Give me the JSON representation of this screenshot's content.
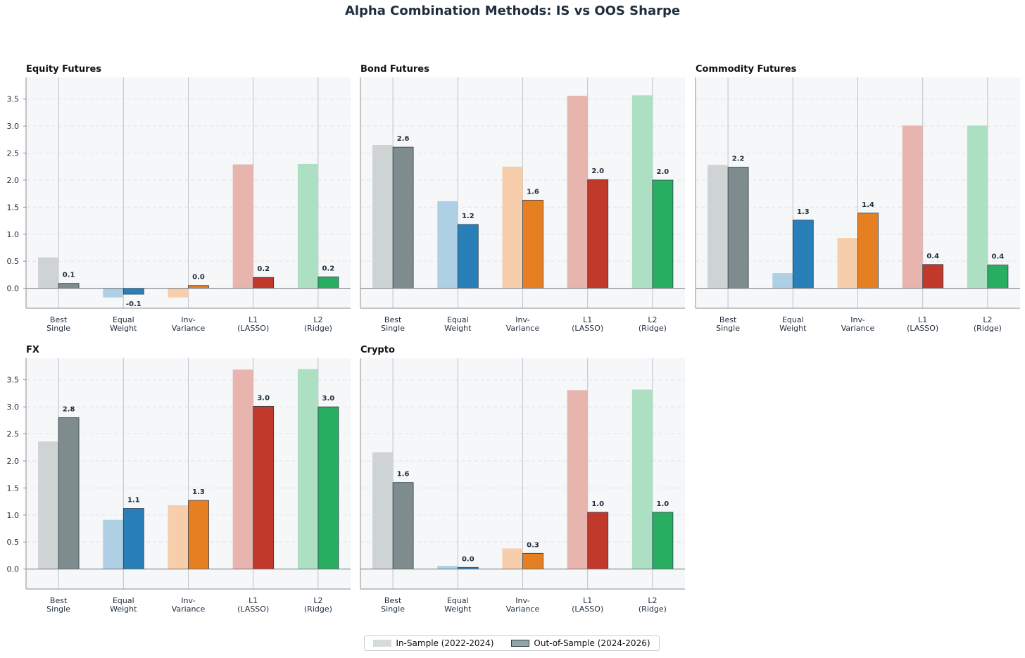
{
  "figure_title": "Alpha Combination Methods: IS vs OOS Sharpe",
  "legend": {
    "in_sample_label": "In-Sample (2022-2024)",
    "out_of_sample_label": "Out-of-Sample (2024-2026)",
    "placement": "bottom-center"
  },
  "colors": {
    "method_colors": [
      "#7f8c8d",
      "#2980b9",
      "#e67e22",
      "#c0392b",
      "#27ae60"
    ],
    "panel_background": "#f5f7f9",
    "label_color": "#1f2d3d"
  },
  "chart_data": [
    {
      "type": "bar",
      "title": "Equity Futures",
      "categories": [
        "Best\nSingle",
        "Equal\nWeight",
        "Inv-\nVariance",
        "L1\n(LASSO)",
        "L2\n(Ridge)"
      ],
      "series": [
        {
          "name": "In-Sample (2022-2024)",
          "values": [
            0.57,
            -0.17,
            -0.17,
            2.29,
            2.3
          ]
        },
        {
          "name": "Out-of-Sample (2024-2026)",
          "values": [
            0.09,
            -0.11,
            0.05,
            0.2,
            0.21
          ]
        }
      ],
      "data_labels": [
        "0.1",
        "-0.1",
        "0.0",
        "0.2",
        "0.2"
      ],
      "ylim": [
        -0.37,
        3.9
      ],
      "yticks": [
        "0.0",
        "0.5",
        "1.0",
        "1.5",
        "2.0",
        "2.5",
        "3.0",
        "3.5"
      ],
      "grid": true
    },
    {
      "type": "bar",
      "title": "Bond Futures",
      "categories": [
        "Best\nSingle",
        "Equal\nWeight",
        "Inv-\nVariance",
        "L1\n(LASSO)",
        "L2\n(Ridge)"
      ],
      "series": [
        {
          "name": "In-Sample (2022-2024)",
          "values": [
            2.65,
            1.61,
            2.25,
            3.56,
            3.57
          ]
        },
        {
          "name": "Out-of-Sample (2024-2026)",
          "values": [
            2.61,
            1.18,
            1.63,
            2.01,
            2.0
          ]
        }
      ],
      "data_labels": [
        "2.6",
        "1.2",
        "1.6",
        "2.0",
        "2.0"
      ],
      "ylim": [
        -0.37,
        3.9
      ],
      "yticks": [],
      "grid": true
    },
    {
      "type": "bar",
      "title": "Commodity Futures",
      "categories": [
        "Best\nSingle",
        "Equal\nWeight",
        "Inv-\nVariance",
        "L1\n(LASSO)",
        "L2\n(Ridge)"
      ],
      "series": [
        {
          "name": "In-Sample (2022-2024)",
          "values": [
            2.28,
            0.28,
            0.93,
            3.01,
            3.01
          ]
        },
        {
          "name": "Out-of-Sample (2024-2026)",
          "values": [
            2.24,
            1.26,
            1.39,
            0.44,
            0.43
          ]
        }
      ],
      "data_labels": [
        "2.2",
        "1.3",
        "1.4",
        "0.4",
        "0.4"
      ],
      "ylim": [
        -0.37,
        3.9
      ],
      "yticks": [],
      "grid": true
    },
    {
      "type": "bar",
      "title": "FX",
      "categories": [
        "Best\nSingle",
        "Equal\nWeight",
        "Inv-\nVariance",
        "L1\n(LASSO)",
        "L2\n(Ridge)"
      ],
      "series": [
        {
          "name": "In-Sample (2022-2024)",
          "values": [
            2.36,
            0.91,
            1.18,
            3.69,
            3.7
          ]
        },
        {
          "name": "Out-of-Sample (2024-2026)",
          "values": [
            2.8,
            1.12,
            1.27,
            3.01,
            3.0
          ]
        }
      ],
      "data_labels": [
        "2.8",
        "1.1",
        "1.3",
        "3.0",
        "3.0"
      ],
      "ylim": [
        -0.37,
        3.9
      ],
      "yticks": [
        "0.0",
        "0.5",
        "1.0",
        "1.5",
        "2.0",
        "2.5",
        "3.0",
        "3.5"
      ],
      "grid": true
    },
    {
      "type": "bar",
      "title": "Crypto",
      "categories": [
        "Best\nSingle",
        "Equal\nWeight",
        "Inv-\nVariance",
        "L1\n(LASSO)",
        "L2\n(Ridge)"
      ],
      "series": [
        {
          "name": "In-Sample (2022-2024)",
          "values": [
            2.16,
            0.06,
            0.38,
            3.31,
            3.32
          ]
        },
        {
          "name": "Out-of-Sample (2024-2026)",
          "values": [
            1.6,
            0.03,
            0.29,
            1.05,
            1.05
          ]
        }
      ],
      "data_labels": [
        "1.6",
        "0.0",
        "0.3",
        "1.0",
        "1.0"
      ],
      "ylim": [
        -0.37,
        3.9
      ],
      "yticks": [],
      "grid": true
    }
  ]
}
